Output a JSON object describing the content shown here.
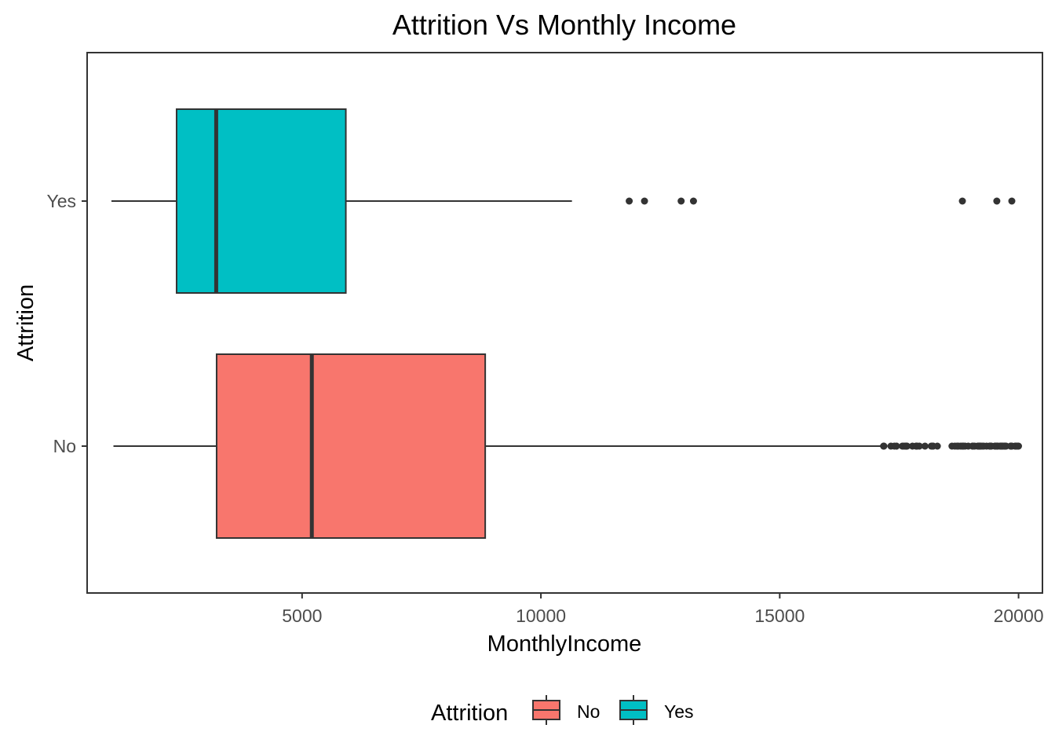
{
  "chart_data": {
    "type": "boxplot",
    "orientation": "horizontal",
    "title": "Attrition Vs Monthly Income",
    "xlabel": "MonthlyIncome",
    "ylabel": "Attrition",
    "xlim": [
      500,
      20500
    ],
    "x_ticks": [
      5000,
      10000,
      15000,
      20000
    ],
    "categories": [
      "No",
      "Yes"
    ],
    "grid": false,
    "legend": {
      "title": "Attrition",
      "position": "bottom",
      "entries": [
        {
          "label": "No",
          "color": "#F8766D"
        },
        {
          "label": "Yes",
          "color": "#00BFC4"
        }
      ]
    },
    "series": [
      {
        "category": "No",
        "color": "#F8766D",
        "whisker_low": 1051,
        "q1": 3211,
        "median": 5204,
        "q3": 8834,
        "whisker_high": 17159,
        "outliers": [
          17174,
          17181,
          17328,
          17399,
          17444,
          17567,
          17603,
          17639,
          17650,
          17665,
          17779,
          17856,
          17861,
          17875,
          17924,
          18041,
          18172,
          18200,
          18213,
          18300,
          18606,
          18665,
          18711,
          18740,
          18789,
          18824,
          18844,
          18880,
          18947,
          19033,
          19045,
          19081,
          19144,
          19161,
          19187,
          19189,
          19202,
          19237,
          19272,
          19331,
          19392,
          19406,
          19419,
          19431,
          19502,
          19513,
          19545,
          19566,
          19613,
          19627,
          19636,
          19658,
          19665,
          19701,
          19717,
          19740,
          19833,
          19845,
          19847,
          19859,
          19926,
          19943,
          19973,
          19999
        ]
      },
      {
        "category": "Yes",
        "color": "#00BFC4",
        "whisker_low": 1009,
        "q1": 2373,
        "median": 3202,
        "q3": 5916,
        "whisker_high": 10650,
        "outliers": [
          11849,
          12169,
          12936,
          13194,
          18824,
          19545,
          19859
        ]
      }
    ]
  }
}
